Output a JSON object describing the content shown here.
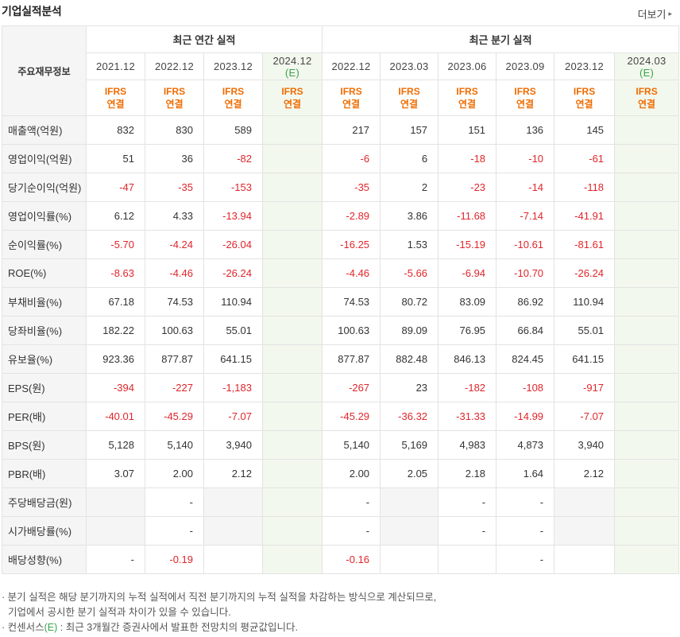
{
  "header": {
    "title": "기업실적분석",
    "more_label": "더보기"
  },
  "table": {
    "metric_header": "주요재무정보",
    "groups": {
      "annual": "최근 연간 실적",
      "quarterly": "최근 분기 실적"
    },
    "annual_periods": [
      "2021.12",
      "2022.12",
      "2023.12"
    ],
    "annual_estimate": {
      "period": "2024.12",
      "mark": "(E)"
    },
    "quarter_periods": [
      "2022.12",
      "2023.03",
      "2023.06",
      "2023.09",
      "2023.12"
    ],
    "quarter_estimate": {
      "period": "2024.03",
      "mark": "(E)"
    },
    "ifrs_top": "IFRS",
    "ifrs_bottom": "연결",
    "rows": [
      {
        "label": "매출액(억원)",
        "annual": [
          "832",
          "830",
          "589"
        ],
        "quarter": [
          "217",
          "157",
          "151",
          "136",
          "145"
        ],
        "group_start": true
      },
      {
        "label": "영업이익(억원)",
        "annual": [
          "51",
          "36",
          "-82"
        ],
        "quarter": [
          "-6",
          "6",
          "-18",
          "-10",
          "-61"
        ]
      },
      {
        "label": "당기순이익(억원)",
        "annual": [
          "-47",
          "-35",
          "-153"
        ],
        "quarter": [
          "-35",
          "2",
          "-23",
          "-14",
          "-118"
        ]
      },
      {
        "label": "영업이익률(%)",
        "annual": [
          "6.12",
          "4.33",
          "-13.94"
        ],
        "quarter": [
          "-2.89",
          "3.86",
          "-11.68",
          "-7.14",
          "-41.91"
        ],
        "group_start": true
      },
      {
        "label": "순이익률(%)",
        "annual": [
          "-5.70",
          "-4.24",
          "-26.04"
        ],
        "quarter": [
          "-16.25",
          "1.53",
          "-15.19",
          "-10.61",
          "-81.61"
        ]
      },
      {
        "label": "ROE(%)",
        "annual": [
          "-8.63",
          "-4.46",
          "-26.24"
        ],
        "quarter": [
          "-4.46",
          "-5.66",
          "-6.94",
          "-10.70",
          "-26.24"
        ]
      },
      {
        "label": "부채비율(%)",
        "annual": [
          "67.18",
          "74.53",
          "110.94"
        ],
        "quarter": [
          "74.53",
          "80.72",
          "83.09",
          "86.92",
          "110.94"
        ],
        "group_start": true
      },
      {
        "label": "당좌비율(%)",
        "annual": [
          "182.22",
          "100.63",
          "55.01"
        ],
        "quarter": [
          "100.63",
          "89.09",
          "76.95",
          "66.84",
          "55.01"
        ]
      },
      {
        "label": "유보율(%)",
        "annual": [
          "923.36",
          "877.87",
          "641.15"
        ],
        "quarter": [
          "877.87",
          "882.48",
          "846.13",
          "824.45",
          "641.15"
        ]
      },
      {
        "label": "EPS(원)",
        "annual": [
          "-394",
          "-227",
          "-1,183"
        ],
        "quarter": [
          "-267",
          "23",
          "-182",
          "-108",
          "-917"
        ],
        "group_start": true
      },
      {
        "label": "PER(배)",
        "annual": [
          "-40.01",
          "-45.29",
          "-7.07"
        ],
        "quarter": [
          "-45.29",
          "-36.32",
          "-31.33",
          "-14.99",
          "-7.07"
        ]
      },
      {
        "label": "BPS(원)",
        "annual": [
          "5,128",
          "5,140",
          "3,940"
        ],
        "quarter": [
          "5,140",
          "5,169",
          "4,983",
          "4,873",
          "3,940"
        ]
      },
      {
        "label": "PBR(배)",
        "annual": [
          "3.07",
          "2.00",
          "2.12"
        ],
        "quarter": [
          "2.00",
          "2.05",
          "2.18",
          "1.64",
          "2.12"
        ]
      },
      {
        "label": "주당배당금(원)",
        "annual": [
          "",
          "-",
          ""
        ],
        "quarter": [
          "-",
          "",
          "-",
          "-",
          ""
        ],
        "group_start": true
      },
      {
        "label": "시가배당률(%)",
        "annual": [
          "",
          "-",
          ""
        ],
        "quarter": [
          "-",
          "",
          "-",
          "-",
          ""
        ]
      },
      {
        "label": "배당성향(%)",
        "annual": [
          "-",
          "-0.19",
          ""
        ],
        "quarter": [
          "-0.16",
          "",
          "",
          "-",
          ""
        ]
      }
    ]
  },
  "notes": {
    "line1": "· 분기 실적은 해당 분기까지의 누적 실적에서 직전 분기까지의 누적 실적을 차감하는 방식으로 계산되므로,",
    "line2": "  기업에서 공시한 분기 실적과 차이가 있을 수 있습니다.",
    "line3_a": "· 컨센서스",
    "line3_e": "(E)",
    "line3_b": " : 최근 3개월간 증권사에서 발표한 전망치의 평균값입니다."
  },
  "colors": {
    "negative": "#e0252b",
    "ifrs": "#ef6c00",
    "estimate_bg": "#f2f8ee",
    "estimate_mark": "#3aa34a",
    "label_bg": "#f5f5f5"
  }
}
